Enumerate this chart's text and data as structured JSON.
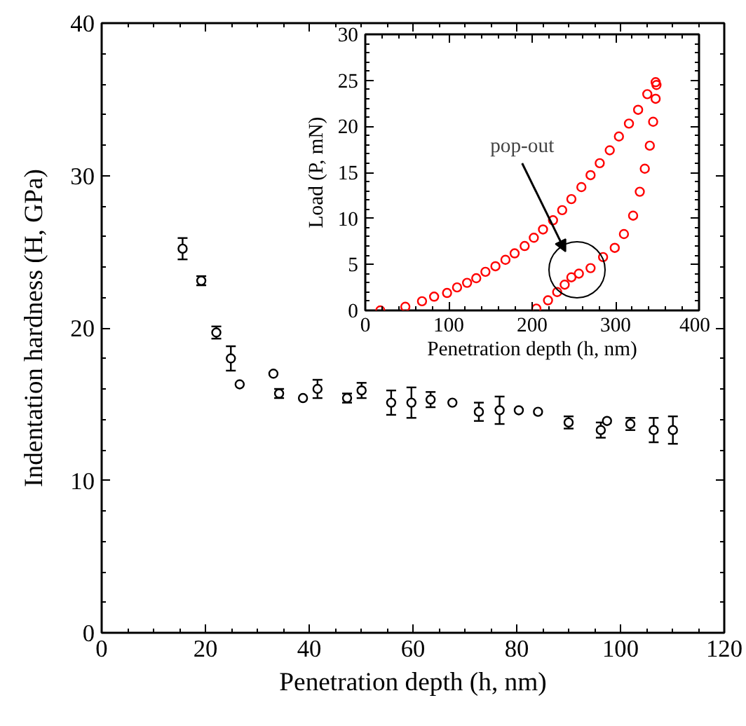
{
  "chart_data": [
    {
      "type": "scatter",
      "xlabel": "Penetration depth (h, nm)",
      "ylabel": "Indentation hardness (H, GPa)",
      "marker": "circle",
      "grid": false,
      "xlim": [
        0,
        120
      ],
      "ylim": [
        0,
        40
      ],
      "xticks": [
        0,
        20,
        40,
        60,
        80,
        100,
        120
      ],
      "yticks": [
        0,
        10,
        20,
        30,
        40
      ],
      "series": [
        {
          "color": "#000000",
          "x": [
            15.6,
            19.2,
            22.1,
            24.9,
            26.6,
            33.1,
            34.2,
            38.8,
            41.6,
            47.3,
            50.1,
            55.8,
            59.7,
            63.4,
            67.6,
            72.7,
            76.7,
            80.4,
            84.1,
            90.0,
            96.2,
            97.4,
            101.9,
            106.4,
            110.1
          ],
          "values": [
            25.2,
            23.1,
            19.7,
            18.0,
            16.3,
            17.0,
            15.7,
            15.4,
            16.0,
            15.4,
            15.9,
            15.1,
            15.1,
            15.3,
            15.1,
            14.5,
            14.6,
            14.6,
            14.5,
            13.8,
            13.3,
            13.9,
            13.7,
            13.3,
            13.3
          ],
          "errors": [
            0.7,
            0.3,
            0.4,
            0.8,
            null,
            null,
            0.3,
            null,
            0.6,
            0.3,
            0.5,
            0.8,
            1.0,
            0.5,
            null,
            0.6,
            0.9,
            null,
            null,
            0.4,
            0.5,
            null,
            0.4,
            0.8,
            0.9
          ]
        }
      ]
    },
    {
      "type": "scatter",
      "xlabel": "Penetration depth (h, nm)",
      "ylabel": "Load (P, mN)",
      "marker": "circle",
      "grid": false,
      "xlim": [
        0,
        400
      ],
      "ylim": [
        0,
        30
      ],
      "xticks": [
        0,
        100,
        200,
        300,
        400
      ],
      "yticks": [
        0,
        5,
        10,
        15,
        20,
        25,
        30
      ],
      "annotations": [
        "pop-out"
      ],
      "series": [
        {
          "color": "#ff0000",
          "x": [
            18,
            48,
            68,
            82.5,
            98,
            110,
            122,
            133,
            144,
            156,
            168,
            179,
            191,
            202,
            213,
            225,
            236,
            247,
            259,
            270,
            281,
            293,
            304,
            316,
            327,
            338,
            348,
            349,
            348,
            345,
            341,
            335,
            329,
            321,
            310,
            299,
            285,
            270,
            256,
            247,
            239,
            230,
            219,
            205
          ],
          "values": [
            0,
            0.4,
            1.0,
            1.5,
            1.9,
            2.5,
            3.0,
            3.5,
            4.2,
            4.8,
            5.5,
            6.2,
            7.0,
            7.9,
            8.8,
            9.8,
            10.9,
            12.1,
            13.4,
            14.7,
            16.0,
            17.4,
            18.9,
            20.3,
            21.8,
            23.5,
            24.8,
            24.5,
            23.0,
            20.5,
            17.9,
            15.4,
            12.9,
            10.3,
            8.3,
            6.8,
            5.8,
            4.6,
            4.0,
            3.6,
            2.8,
            2.0,
            1.1,
            0.2
          ]
        }
      ]
    }
  ]
}
